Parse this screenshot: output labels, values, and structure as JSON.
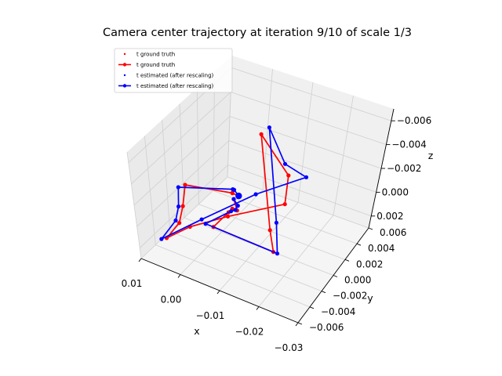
{
  "chart_data": {
    "type": "line",
    "title": "Camera center trajectory at iteration 9/10 of scale 1/3",
    "xlabel": "x",
    "ylabel": "y",
    "zlabel": "z",
    "xlim": [
      0.01,
      -0.03
    ],
    "ylim": [
      -0.006,
      0.006
    ],
    "zlim": [
      0.003,
      -0.007
    ],
    "x_ticks": [
      "0.01",
      "0.00",
      "−0.01",
      "−0.02",
      "−0.03"
    ],
    "y_ticks": [
      "0.006",
      "0.004",
      "0.002",
      "0.000",
      "−0.002",
      "−0.004",
      "−0.006"
    ],
    "z_ticks": [
      "−0.006",
      "−0.004",
      "−0.002",
      "0.000",
      "0.002"
    ],
    "legend_position": "upper-left",
    "colors": {
      "ground_truth": "#ff0000",
      "estimated": "#0000ff"
    },
    "legend": [
      {
        "label": "t ground truth",
        "style": "points",
        "color": "#ff0000"
      },
      {
        "label": "t ground truth",
        "style": "line-marker",
        "color": "#ff0000"
      },
      {
        "label": "t estimated (after rescaling)",
        "style": "points",
        "color": "#0000ff"
      },
      {
        "label": "t estimated (after rescaling)",
        "style": "line-marker",
        "color": "#0000ff"
      }
    ],
    "series": [
      {
        "name": "t ground truth",
        "color": "#ff0000",
        "points": [
          [
            -0.0045,
            0.0015,
            0.0005
          ],
          [
            -0.002,
            0.002,
            0.001
          ],
          [
            -0.001,
            0.0025,
            0.0015
          ],
          [
            0.003,
            -0.002,
            -0.002
          ],
          [
            0.004,
            -0.0022,
            0.0
          ],
          [
            0.005,
            -0.0025,
            0.0015
          ],
          [
            0.008,
            -0.003,
            0.003
          ],
          [
            0.006,
            -0.0005,
            0.0035
          ],
          [
            0.001,
            0.0025,
            0.004
          ],
          [
            -0.012,
            0.004,
            0.002
          ],
          [
            -0.014,
            0.004,
            -0.001
          ],
          [
            -0.01,
            0.003,
            -0.005
          ],
          [
            -0.022,
            -0.004,
            -0.003
          ],
          [
            -0.024,
            -0.005,
            -0.002
          ],
          [
            -0.005,
            -0.003,
            0.0
          ],
          [
            -0.004,
            0.0,
            0.001
          ],
          [
            -0.0042,
            0.0005,
            0.001
          ],
          [
            -0.0045,
            0.001,
            0.0015
          ],
          [
            -0.004,
            0.001,
            0.0005
          ]
        ]
      },
      {
        "name": "t estimated (after rescaling)",
        "color": "#0000ff",
        "points": [
          [
            -0.0045,
            0.0015,
            0.0005
          ],
          [
            -0.0022,
            0.0022,
            0.0008
          ],
          [
            -0.0011,
            0.0026,
            0.0012
          ],
          [
            0.004,
            -0.0025,
            -0.002
          ],
          [
            0.0048,
            -0.0024,
            0.0
          ],
          [
            0.0055,
            -0.0027,
            0.0012
          ],
          [
            0.0085,
            -0.0035,
            0.0028
          ],
          [
            0.0035,
            0.0,
            0.0028
          ],
          [
            -0.0045,
            0.004,
            0.0022
          ],
          [
            -0.015,
            0.006,
            0.0005
          ],
          [
            -0.0135,
            0.004,
            -0.002
          ],
          [
            -0.0115,
            0.0035,
            -0.0055
          ],
          [
            -0.024,
            -0.004,
            -0.004
          ],
          [
            -0.025,
            -0.005,
            -0.002
          ],
          [
            -0.003,
            -0.003,
            0.0
          ],
          [
            -0.0045,
            0.0001,
            0.0009
          ],
          [
            -0.005,
            0.0005,
            0.001
          ],
          [
            -0.0045,
            0.0012,
            0.0012
          ],
          [
            -0.004,
            0.001,
            0.0005
          ]
        ]
      }
    ],
    "big_marker": [
      -0.0045,
      0.0015,
      0.0005
    ]
  }
}
